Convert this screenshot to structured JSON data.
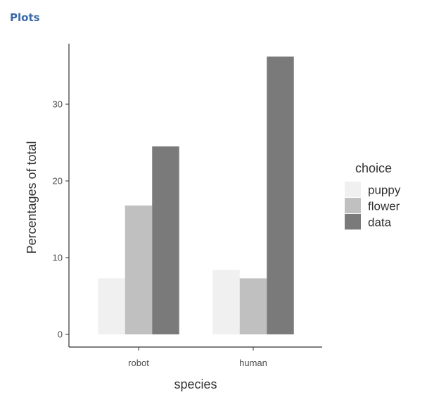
{
  "pane": {
    "title": "Plots"
  },
  "colors": {
    "puppy": "#f0f0f0",
    "flower": "#c0c0c0",
    "data": "#7a7a7a",
    "axis": "#333333"
  },
  "chart_data": {
    "type": "bar",
    "title": "",
    "xlabel": "species",
    "ylabel": "Percentages of total",
    "categories": [
      "robot",
      "human"
    ],
    "series": [
      {
        "name": "puppy",
        "values": [
          7.3,
          8.4
        ]
      },
      {
        "name": "flower",
        "values": [
          16.8,
          7.3
        ]
      },
      {
        "name": "data",
        "values": [
          24.5,
          36.2
        ]
      }
    ],
    "ylim": [
      0,
      37.5
    ],
    "yticks": [
      0,
      10,
      20,
      30
    ],
    "grid": false,
    "legend": {
      "title": "choice",
      "placement": "right"
    }
  }
}
